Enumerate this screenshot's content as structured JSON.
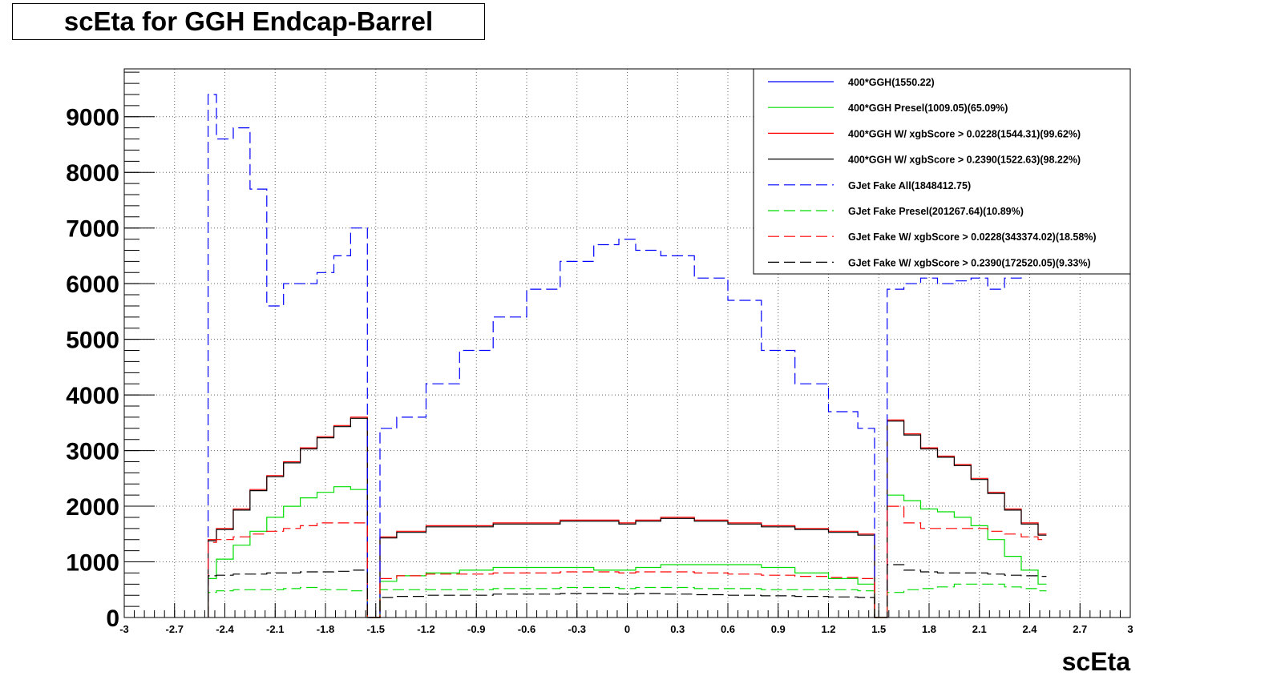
{
  "chart_data": {
    "type": "line",
    "title": "scEta for GGH Endcap-Barrel",
    "xlabel": "scEta",
    "ylabel": "",
    "xlim": [
      -3,
      3
    ],
    "ylim": [
      0,
      9000
    ],
    "grid": true,
    "legend_position": "top-right",
    "x_ticks": [
      "-3",
      "-2.7",
      "-2.4",
      "-2.1",
      "-1.8",
      "-1.5",
      "-1.2",
      "-0.9",
      "-0.6",
      "-0.3",
      "0",
      "0.3",
      "0.6",
      "0.9",
      "1.2",
      "1.5",
      "1.8",
      "2.1",
      "2.4",
      "2.7",
      "3"
    ],
    "y_ticks": [
      "0",
      "1000",
      "2000",
      "3000",
      "4000",
      "5000",
      "6000",
      "7000",
      "8000",
      "9000"
    ],
    "x": [
      -2.5,
      -2.4,
      -2.3,
      -2.2,
      -2.1,
      -2.0,
      -1.9,
      -1.8,
      -1.7,
      -1.6,
      -1.5,
      -1.45,
      -1.3,
      -1.1,
      -0.9,
      -0.7,
      -0.5,
      -0.3,
      -0.1,
      0.0,
      0.1,
      0.3,
      0.5,
      0.7,
      0.9,
      1.1,
      1.3,
      1.45,
      1.5,
      1.6,
      1.7,
      1.8,
      1.9,
      2.0,
      2.1,
      2.2,
      2.3,
      2.4,
      2.5
    ],
    "series": [
      {
        "name": "400*GGH(1550.22)",
        "color": "#0000ff",
        "style": "solid",
        "values": [
          null,
          null,
          null,
          null,
          null,
          null,
          null,
          null,
          null,
          null,
          null,
          null,
          null,
          null,
          null,
          null,
          null,
          null,
          null,
          null,
          null,
          null,
          null,
          null,
          null,
          null,
          null,
          null,
          null,
          null,
          null,
          null,
          null,
          null,
          null,
          null,
          null,
          null,
          null
        ]
      },
      {
        "name": "400*GGH Presel(1009.05)(65.09%)",
        "color": "#00dd00",
        "style": "solid",
        "values": [
          700,
          1050,
          1300,
          1550,
          1800,
          2000,
          2150,
          2250,
          2350,
          2300,
          0,
          650,
          750,
          800,
          850,
          900,
          900,
          900,
          850,
          850,
          900,
          950,
          950,
          950,
          900,
          800,
          700,
          600,
          0,
          2200,
          2100,
          1950,
          1900,
          1800,
          1650,
          1400,
          1100,
          850,
          600
        ]
      },
      {
        "name": "400*GGH W/ xgbScore > 0.0228(1544.31)(99.62%)",
        "color": "#ff0000",
        "style": "solid",
        "values": [
          1400,
          1600,
          1950,
          2300,
          2550,
          2800,
          3050,
          3250,
          3450,
          3600,
          0,
          1450,
          1550,
          1650,
          1650,
          1700,
          1700,
          1750,
          1750,
          1700,
          1750,
          1800,
          1750,
          1700,
          1650,
          1600,
          1550,
          1500,
          0,
          3550,
          3300,
          3050,
          2900,
          2750,
          2500,
          2250,
          1950,
          1700,
          1500
        ]
      },
      {
        "name": "400*GGH W/ xgbScore > 0.2390(1522.63)(98.22%)",
        "color": "#000000",
        "style": "solid",
        "values": [
          1380,
          1580,
          1930,
          2280,
          2530,
          2780,
          3030,
          3230,
          3430,
          3580,
          0,
          1430,
          1530,
          1630,
          1630,
          1680,
          1680,
          1730,
          1730,
          1680,
          1730,
          1780,
          1730,
          1680,
          1630,
          1580,
          1530,
          1480,
          0,
          3530,
          3280,
          3030,
          2880,
          2730,
          2480,
          2230,
          1930,
          1680,
          1480
        ]
      },
      {
        "name": "GJet Fake All(1848412.75)",
        "color": "#0000ff",
        "style": "dashed",
        "values": [
          9400,
          8600,
          8800,
          7700,
          5600,
          6000,
          6000,
          6200,
          6500,
          7000,
          0,
          3400,
          3600,
          4200,
          4800,
          5400,
          5900,
          6400,
          6700,
          6800,
          6600,
          6500,
          6100,
          5700,
          4800,
          4200,
          3700,
          3400,
          0,
          5900,
          6000,
          6100,
          6000,
          6050,
          6100,
          5900,
          6100,
          6200,
          6300
        ]
      },
      {
        "name": "GJet Fake Presel(201267.64)(10.89%)",
        "color": "#00dd00",
        "style": "dashed",
        "values": [
          450,
          480,
          500,
          500,
          500,
          520,
          540,
          500,
          500,
          480,
          0,
          500,
          500,
          500,
          500,
          520,
          520,
          540,
          540,
          520,
          540,
          540,
          520,
          520,
          500,
          500,
          500,
          480,
          0,
          450,
          500,
          520,
          550,
          600,
          600,
          600,
          550,
          520,
          480
        ]
      },
      {
        "name": "GJet Fake W/ xgbScore > 0.0228(343374.02)(18.58%)",
        "color": "#ff0000",
        "style": "dashed",
        "values": [
          1350,
          1400,
          1450,
          1500,
          1550,
          1600,
          1650,
          1700,
          1700,
          1700,
          0,
          700,
          750,
          780,
          780,
          800,
          800,
          820,
          820,
          800,
          820,
          820,
          800,
          780,
          760,
          740,
          720,
          700,
          0,
          2000,
          1700,
          1600,
          1600,
          1600,
          1600,
          1550,
          1500,
          1450,
          1400
        ]
      },
      {
        "name": "GJet Fake W/ xgbScore > 0.2390(172520.05)(9.33%)",
        "color": "#000000",
        "style": "dashed",
        "values": [
          750,
          760,
          780,
          780,
          800,
          800,
          820,
          820,
          830,
          850,
          0,
          360,
          380,
          400,
          400,
          420,
          420,
          430,
          430,
          420,
          430,
          420,
          410,
          400,
          390,
          380,
          370,
          360,
          0,
          950,
          850,
          820,
          800,
          800,
          800,
          780,
          760,
          750,
          740
        ]
      }
    ]
  }
}
